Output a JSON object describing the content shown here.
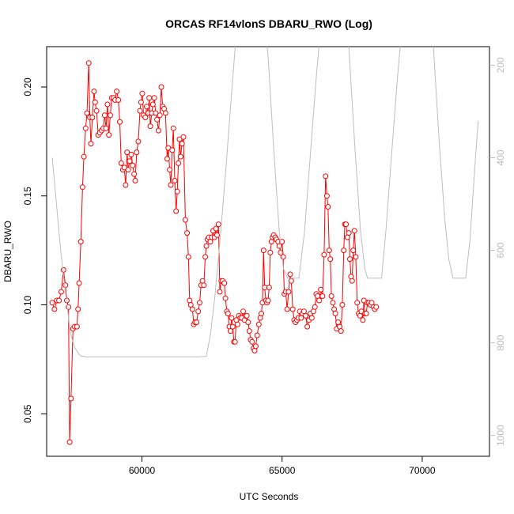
{
  "chart_data": {
    "type": "line",
    "title": "ORCAS RF14vlonS DBARU_RWO (Log)",
    "xlabel": "UTC Seconds",
    "ylabel": "DBARU_RWO",
    "xlim": [
      56600,
      72400
    ],
    "ylim": [
      0.0305,
      0.2185
    ],
    "x_ticks": [
      60000,
      65000,
      70000
    ],
    "y_ticks": [
      0.05,
      0.1,
      0.15,
      0.2
    ],
    "right_axis": {
      "ylim": [
        160,
        1045
      ],
      "reversed": true,
      "ticks": [
        200,
        400,
        600,
        800,
        1000
      ],
      "color": "#bdbdbd"
    },
    "grid": false,
    "legend": "none",
    "colors": {
      "primary": "#ff0000",
      "secondary": "#bdbdbd"
    },
    "series": [
      {
        "style": "line+points",
        "color": "#ff0000",
        "points": [
          [
            56800,
            0.101
          ],
          [
            56880,
            0.098
          ],
          [
            56960,
            0.102
          ],
          [
            57040,
            0.102
          ],
          [
            57120,
            0.106
          ],
          [
            57200,
            0.116
          ],
          [
            57270,
            0.109
          ],
          [
            57320,
            0.102
          ],
          [
            57380,
            0.099
          ],
          [
            57420,
            0.037
          ],
          [
            57470,
            0.057
          ],
          [
            57540,
            0.089
          ],
          [
            57600,
            0.09
          ],
          [
            57680,
            0.09
          ],
          [
            57720,
            0.098
          ],
          [
            57760,
            0.11
          ],
          [
            57820,
            0.129
          ],
          [
            57880,
            0.154
          ],
          [
            57930,
            0.168
          ],
          [
            57990,
            0.181
          ],
          [
            58040,
            0.188
          ],
          [
            58100,
            0.211
          ],
          [
            58140,
            0.186
          ],
          [
            58180,
            0.174
          ],
          [
            58230,
            0.186
          ],
          [
            58290,
            0.198
          ],
          [
            58330,
            0.193
          ],
          [
            58380,
            0.189
          ],
          [
            58440,
            0.178
          ],
          [
            58500,
            0.179
          ],
          [
            58560,
            0.18
          ],
          [
            58620,
            0.181
          ],
          [
            58670,
            0.187
          ],
          [
            58720,
            0.181
          ],
          [
            58770,
            0.192
          ],
          [
            58820,
            0.178
          ],
          [
            58870,
            0.187
          ],
          [
            58920,
            0.195
          ],
          [
            58990,
            0.195
          ],
          [
            59040,
            0.194
          ],
          [
            59100,
            0.198
          ],
          [
            59160,
            0.194
          ],
          [
            59210,
            0.184
          ],
          [
            59260,
            0.165
          ],
          [
            59320,
            0.162
          ],
          [
            59370,
            0.163
          ],
          [
            59420,
            0.155
          ],
          [
            59470,
            0.17
          ],
          [
            59510,
            0.162
          ],
          [
            59560,
            0.166
          ],
          [
            59620,
            0.169
          ],
          [
            59670,
            0.164
          ],
          [
            59720,
            0.16
          ],
          [
            59760,
            0.157
          ],
          [
            59810,
            0.17
          ],
          [
            59870,
            0.175
          ],
          [
            59930,
            0.189
          ],
          [
            59970,
            0.193
          ],
          [
            60010,
            0.197
          ],
          [
            60060,
            0.187
          ],
          [
            60120,
            0.186
          ],
          [
            60170,
            0.191
          ],
          [
            60220,
            0.188
          ],
          [
            60260,
            0.195
          ],
          [
            60300,
            0.182
          ],
          [
            60350,
            0.188
          ],
          [
            60390,
            0.192
          ],
          [
            60440,
            0.195
          ],
          [
            60490,
            0.188
          ],
          [
            60540,
            0.185
          ],
          [
            60590,
            0.18
          ],
          [
            60640,
            0.187
          ],
          [
            60690,
            0.2
          ],
          [
            60740,
            0.191
          ],
          [
            60790,
            0.19
          ],
          [
            60840,
            0.188
          ],
          [
            60900,
            0.167
          ],
          [
            60940,
            0.172
          ],
          [
            60990,
            0.162
          ],
          [
            61030,
            0.155
          ],
          [
            61080,
            0.171
          ],
          [
            61120,
            0.181
          ],
          [
            61170,
            0.157
          ],
          [
            61220,
            0.143
          ],
          [
            61260,
            0.152
          ],
          [
            61300,
            0.165
          ],
          [
            61340,
            0.176
          ],
          [
            61380,
            0.168
          ],
          [
            61430,
            0.174
          ],
          [
            61480,
            0.177
          ],
          [
            61550,
            0.139
          ],
          [
            61610,
            0.133
          ],
          [
            61660,
            0.122
          ],
          [
            61700,
            0.102
          ],
          [
            61740,
            0.1
          ],
          [
            61800,
            0.098
          ],
          [
            61850,
            0.091
          ],
          [
            61900,
            0.092
          ],
          [
            61950,
            0.092
          ],
          [
            62010,
            0.097
          ],
          [
            62060,
            0.101
          ],
          [
            62110,
            0.109
          ],
          [
            62160,
            0.111
          ],
          [
            62210,
            0.109
          ],
          [
            62260,
            0.122
          ],
          [
            62300,
            0.127
          ],
          [
            62340,
            0.13
          ],
          [
            62390,
            0.131
          ],
          [
            62440,
            0.129
          ],
          [
            62490,
            0.131
          ],
          [
            62540,
            0.134
          ],
          [
            62590,
            0.131
          ],
          [
            62640,
            0.135
          ],
          [
            62680,
            0.132
          ],
          [
            62730,
            0.137
          ],
          [
            62780,
            0.106
          ],
          [
            62830,
            0.111
          ],
          [
            62880,
            0.111
          ],
          [
            62940,
            0.11
          ],
          [
            62980,
            0.103
          ],
          [
            63030,
            0.097
          ],
          [
            63070,
            0.096
          ],
          [
            63120,
            0.09
          ],
          [
            63160,
            0.088
          ],
          [
            63200,
            0.094
          ],
          [
            63240,
            0.09
          ],
          [
            63280,
            0.083
          ],
          [
            63320,
            0.083
          ],
          [
            63370,
            0.093
          ],
          [
            63410,
            0.091
          ],
          [
            63460,
            0.095
          ],
          [
            63510,
            0.094
          ],
          [
            63560,
            0.094
          ],
          [
            63610,
            0.097
          ],
          [
            63660,
            0.093
          ],
          [
            63700,
            0.095
          ],
          [
            63740,
            0.095
          ],
          [
            63790,
            0.092
          ],
          [
            63830,
            0.088
          ],
          [
            63880,
            0.084
          ],
          [
            63930,
            0.083
          ],
          [
            63980,
            0.08
          ],
          [
            64020,
            0.079
          ],
          [
            64060,
            0.081
          ],
          [
            64110,
            0.086
          ],
          [
            64170,
            0.091
          ],
          [
            64220,
            0.094
          ],
          [
            64260,
            0.096
          ],
          [
            64300,
            0.101
          ],
          [
            64340,
            0.125
          ],
          [
            64380,
            0.108
          ],
          [
            64420,
            0.102
          ],
          [
            64460,
            0.101
          ],
          [
            64500,
            0.102
          ],
          [
            64540,
            0.108
          ],
          [
            64580,
            0.124
          ],
          [
            64620,
            0.129
          ],
          [
            64660,
            0.131
          ],
          [
            64700,
            0.132
          ],
          [
            64760,
            0.131
          ],
          [
            64800,
            0.13
          ],
          [
            64860,
            0.129
          ],
          [
            64900,
            0.127
          ],
          [
            64950,
            0.124
          ],
          [
            65000,
            0.129
          ],
          [
            65040,
            0.122
          ],
          [
            65080,
            0.105
          ],
          [
            65130,
            0.106
          ],
          [
            65180,
            0.098
          ],
          [
            65230,
            0.106
          ],
          [
            65290,
            0.114
          ],
          [
            65330,
            0.111
          ],
          [
            65380,
            0.098
          ],
          [
            65430,
            0.093
          ],
          [
            65480,
            0.092
          ],
          [
            65530,
            0.093
          ],
          [
            65580,
            0.094
          ],
          [
            65630,
            0.097
          ],
          [
            65680,
            0.094
          ],
          [
            65730,
            0.096
          ],
          [
            65780,
            0.097
          ],
          [
            65840,
            0.095
          ],
          [
            65900,
            0.09
          ],
          [
            65960,
            0.093
          ],
          [
            66010,
            0.096
          ],
          [
            66060,
            0.094
          ],
          [
            66120,
            0.097
          ],
          [
            66170,
            0.099
          ],
          [
            66220,
            0.105
          ],
          [
            66270,
            0.104
          ],
          [
            66320,
            0.102
          ],
          [
            66380,
            0.107
          ],
          [
            66440,
            0.104
          ],
          [
            66500,
            0.123
          ],
          [
            66550,
            0.159
          ],
          [
            66600,
            0.15
          ],
          [
            66640,
            0.145
          ],
          [
            66680,
            0.125
          ],
          [
            66720,
            0.121
          ],
          [
            66760,
            0.104
          ],
          [
            66810,
            0.101
          ],
          [
            66860,
            0.098
          ],
          [
            66900,
            0.096
          ],
          [
            66950,
            0.089
          ],
          [
            67000,
            0.092
          ],
          [
            67050,
            0.09
          ],
          [
            67100,
            0.088
          ],
          [
            67150,
            0.1
          ],
          [
            67200,
            0.125
          ],
          [
            67240,
            0.137
          ],
          [
            67280,
            0.137
          ],
          [
            67330,
            0.131
          ],
          [
            67380,
            0.133
          ],
          [
            67420,
            0.121
          ],
          [
            67460,
            0.113
          ],
          [
            67500,
            0.111
          ],
          [
            67540,
            0.125
          ],
          [
            67580,
            0.134
          ],
          [
            67630,
            0.122
          ],
          [
            67680,
            0.101
          ],
          [
            67730,
            0.096
          ],
          [
            67780,
            0.095
          ],
          [
            67830,
            0.097
          ],
          [
            67880,
            0.093
          ],
          [
            67920,
            0.102
          ],
          [
            67960,
            0.096
          ],
          [
            68000,
            0.096
          ],
          [
            68050,
            0.101
          ],
          [
            68100,
            0.101
          ],
          [
            68150,
            0.1
          ],
          [
            68200,
            0.101
          ],
          [
            68260,
            0.099
          ],
          [
            68310,
            0.098
          ],
          [
            68360,
            0.099
          ]
        ]
      },
      {
        "style": "line",
        "color": "#bdbdbd",
        "axis": "right",
        "points": [
          [
            56800,
            400
          ],
          [
            56950,
            500
          ],
          [
            57100,
            600
          ],
          [
            57250,
            680
          ],
          [
            57450,
            780
          ],
          [
            57600,
            810
          ],
          [
            57800,
            828
          ],
          [
            58000,
            830
          ],
          [
            60000,
            830
          ],
          [
            62000,
            830
          ],
          [
            62300,
            829
          ],
          [
            62450,
            780
          ],
          [
            62600,
            700
          ],
          [
            62800,
            570
          ],
          [
            63000,
            420
          ],
          [
            63200,
            260
          ],
          [
            63400,
            105
          ],
          [
            63650,
            0
          ],
          [
            64200,
            0
          ],
          [
            64500,
            180
          ],
          [
            64700,
            380
          ],
          [
            64900,
            560
          ],
          [
            65050,
            640
          ],
          [
            65200,
            660
          ],
          [
            65600,
            660
          ],
          [
            65800,
            560
          ],
          [
            66000,
            400
          ],
          [
            66200,
            240
          ],
          [
            66400,
            100
          ],
          [
            66600,
            0
          ],
          [
            67200,
            0
          ],
          [
            67400,
            180
          ],
          [
            67600,
            380
          ],
          [
            67800,
            560
          ],
          [
            67950,
            640
          ],
          [
            68050,
            660
          ],
          [
            68550,
            660
          ],
          [
            68700,
            560
          ],
          [
            68900,
            400
          ],
          [
            69100,
            240
          ],
          [
            69300,
            100
          ],
          [
            69500,
            0
          ],
          [
            70200,
            0
          ],
          [
            70400,
            160
          ],
          [
            70600,
            360
          ],
          [
            70800,
            530
          ],
          [
            70950,
            620
          ],
          [
            71100,
            660
          ],
          [
            71550,
            660
          ],
          [
            71700,
            580
          ],
          [
            71900,
            400
          ],
          [
            72000,
            320
          ]
        ]
      }
    ]
  }
}
